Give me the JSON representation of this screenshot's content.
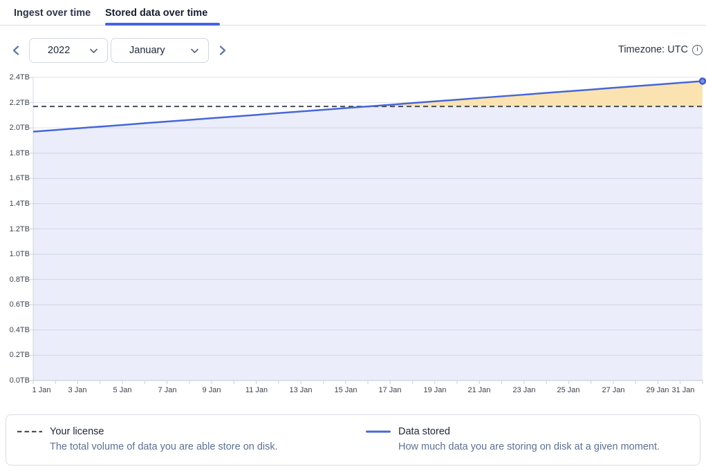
{
  "tabs": {
    "items": [
      {
        "label": "Ingest over time",
        "active": false
      },
      {
        "label": "Stored data over time",
        "active": true
      }
    ],
    "active_underline_color": "#4263eb"
  },
  "controls": {
    "prev_icon": "chevron-left",
    "next_icon": "chevron-right",
    "year": {
      "value": "2022",
      "icon": "chevron-down"
    },
    "month": {
      "value": "January",
      "icon": "chevron-down"
    },
    "timezone": {
      "label": "Timezone: UTC",
      "icon": "info-circle"
    }
  },
  "chart_data": {
    "type": "area",
    "title": "Stored data over time",
    "x": [
      1,
      2,
      3,
      4,
      5,
      6,
      7,
      8,
      9,
      10,
      11,
      12,
      13,
      14,
      15,
      16,
      17,
      18,
      19,
      20,
      21,
      22,
      23,
      24,
      25,
      26,
      27,
      28,
      29,
      30,
      31
    ],
    "x_tick_labels": [
      "1 Jan",
      "3 Jan",
      "5 Jan",
      "7 Jan",
      "9 Jan",
      "11 Jan",
      "13 Jan",
      "15 Jan",
      "17 Jan",
      "19 Jan",
      "21 Jan",
      "23 Jan",
      "25 Jan",
      "27 Jan",
      "29 Jan",
      "31 Jan"
    ],
    "y_tick_labels": [
      "0.0TB",
      "0.2TB",
      "0.4TB",
      "0.6TB",
      "0.8TB",
      "1.0TB",
      "1.2TB",
      "1.4TB",
      "1.6TB",
      "1.8TB",
      "2.0TB",
      "2.2TB",
      "2.4TB"
    ],
    "ylim": [
      0,
      2.4
    ],
    "y_unit": "TB",
    "grid": true,
    "legend_position": "bottom",
    "series": [
      {
        "name": "Data stored",
        "type": "line-area",
        "color": "#4766d6",
        "values": [
          1.97,
          1.983,
          1.997,
          2.01,
          2.023,
          2.037,
          2.05,
          2.063,
          2.077,
          2.09,
          2.103,
          2.117,
          2.13,
          2.143,
          2.157,
          2.17,
          2.183,
          2.197,
          2.21,
          2.223,
          2.237,
          2.25,
          2.263,
          2.277,
          2.29,
          2.303,
          2.317,
          2.33,
          2.343,
          2.357,
          2.37
        ]
      },
      {
        "name": "Your license",
        "type": "threshold-dashed",
        "color": "#454b57",
        "value": 2.17
      }
    ],
    "area_fill": "#5b74d6",
    "area_fill_opacity": 0.12,
    "over_license_fill": "#fae3b0",
    "end_marker": {
      "day": 31,
      "value": 2.37,
      "fill": "#7b93e3",
      "stroke": "#3f5dcc"
    }
  },
  "legend": {
    "items": [
      {
        "swatch": "dashed-line",
        "swatch_color": "#4a505c",
        "title": "Your license",
        "description": "The total volume of data you are able store on disk."
      },
      {
        "swatch": "solid-line",
        "swatch_color": "#4766d6",
        "title": "Data stored",
        "description": "How much data you are storing on disk at a given moment."
      }
    ]
  }
}
